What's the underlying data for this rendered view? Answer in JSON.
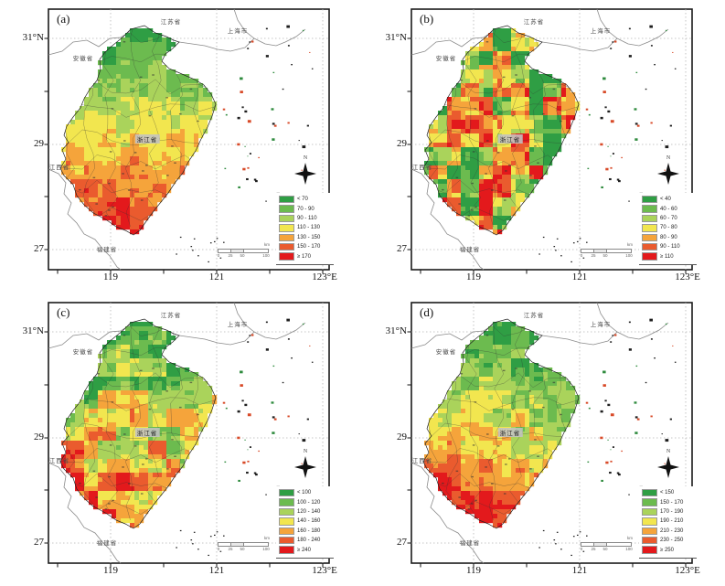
{
  "figure": {
    "panels": [
      {
        "id": "a",
        "label": "(a)",
        "legend": [
          "< 70",
          "70 - 90",
          "90 - 110",
          "110 - 130",
          "130 - 150",
          "150 - 170",
          "≥ 170"
        ]
      },
      {
        "id": "b",
        "label": "(b)",
        "legend": [
          "< 40",
          "40 - 60",
          "60 - 70",
          "70 - 80",
          "80 - 90",
          "90 - 110",
          "≥ 110"
        ]
      },
      {
        "id": "c",
        "label": "(c)",
        "legend": [
          "< 100",
          "100 - 120",
          "120 - 140",
          "140 - 160",
          "160 - 180",
          "180 - 240",
          "≥ 240"
        ]
      },
      {
        "id": "d",
        "label": "(d)",
        "legend": [
          "< 150",
          "150 - 170",
          "170 - 190",
          "190 - 210",
          "210 - 230",
          "230 - 250",
          "≥ 250"
        ]
      }
    ],
    "axes": {
      "lat": [
        "31°N",
        "29",
        "27"
      ],
      "lon": [
        "119",
        "121",
        "123°E"
      ]
    },
    "regions": {
      "jiangsu": "江苏省",
      "shanghai": "上海市",
      "anhui": "安徽省",
      "jiangxi": "江西省",
      "fujian": "福建省",
      "zhejiang": "浙江省"
    },
    "scalebar": {
      "ticks": [
        "0",
        "25",
        "50",
        "100"
      ],
      "unit": "km"
    },
    "compass": "N",
    "colors": {
      "classes": [
        "#2f9e44",
        "#6cbb4f",
        "#aad35b",
        "#f2e64f",
        "#f5a43b",
        "#ea5b2e",
        "#e3191c"
      ],
      "frame": "#1a1a1a",
      "grid": "#b5b5b5",
      "neighbor_border": "#8a8a8a"
    }
  }
}
